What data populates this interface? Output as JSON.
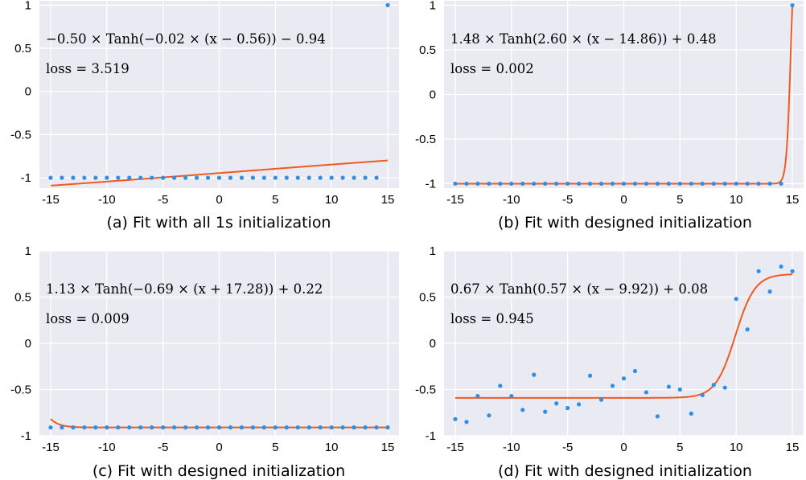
{
  "colors": {
    "background": "#EAEAF2",
    "grid": "#FFFFFF",
    "points": "#2E8FE8",
    "fit": "#F05A1E"
  },
  "chart_data": [
    {
      "type": "scatter",
      "caption": "(a) Fit with all 1s initialization",
      "equation": "−0.50 × Tanh(−0.02 × (x − 0.56)) − 0.94",
      "loss": "loss = 3.519",
      "xlim": [
        -16,
        16
      ],
      "ylim": [
        -1.12,
        1.05
      ],
      "xticks": [
        "-15",
        "-10",
        "-5",
        "0",
        "5",
        "10",
        "15"
      ],
      "yticks": [
        "-1",
        "-0.5",
        "0",
        "0.5",
        "1"
      ],
      "grid": true,
      "x": [
        -15,
        -14,
        -13,
        -12,
        -11,
        -10,
        -9,
        -8,
        -7,
        -6,
        -5,
        -4,
        -3,
        -2,
        -1,
        0,
        1,
        2,
        3,
        4,
        5,
        6,
        7,
        8,
        9,
        10,
        11,
        12,
        13,
        14,
        15
      ],
      "y": [
        -1,
        -1,
        -1,
        -1,
        -1,
        -1,
        -1,
        -1,
        -1,
        -1,
        -1,
        -1,
        -1,
        -1,
        -1,
        -1,
        -1,
        -1,
        -1,
        -1,
        -1,
        -1,
        -1,
        -1,
        -1,
        -1,
        -1,
        -1,
        -1,
        -1,
        1
      ],
      "fit": {
        "A": -0.5,
        "b": -0.02,
        "c": 0.56,
        "d": -0.94
      }
    },
    {
      "type": "scatter",
      "caption": "(b) Fit with designed initialization",
      "equation": "1.48 × Tanh(2.60 × (x − 14.86)) + 0.48",
      "loss": "loss = 0.002",
      "xlim": [
        -16,
        16
      ],
      "ylim": [
        -1.05,
        1.05
      ],
      "xticks": [
        "-15",
        "-10",
        "-5",
        "0",
        "5",
        "10",
        "15"
      ],
      "yticks": [
        "-1",
        "-0.5",
        "0",
        "0.5",
        "1"
      ],
      "grid": true,
      "x": [
        -15,
        -14,
        -13,
        -12,
        -11,
        -10,
        -9,
        -8,
        -7,
        -6,
        -5,
        -4,
        -3,
        -2,
        -1,
        0,
        1,
        2,
        3,
        4,
        5,
        6,
        7,
        8,
        9,
        10,
        11,
        12,
        13,
        14,
        15
      ],
      "y": [
        -1,
        -1,
        -1,
        -1,
        -1,
        -1,
        -1,
        -1,
        -1,
        -1,
        -1,
        -1,
        -1,
        -1,
        -1,
        -1,
        -1,
        -1,
        -1,
        -1,
        -1,
        -1,
        -1,
        -1,
        -1,
        -1,
        -1,
        -1,
        -1,
        -1,
        1
      ],
      "fit": {
        "A": 1.48,
        "b": 2.6,
        "c": 14.86,
        "d": 0.48
      }
    },
    {
      "type": "scatter",
      "caption": "(c) Fit with designed initialization",
      "equation": "1.13 × Tanh(−0.69 × (x + 17.28)) + 0.22",
      "loss": "loss = 0.009",
      "xlim": [
        -16,
        16
      ],
      "ylim": [
        -1.0,
        1.0
      ],
      "xticks": [
        "-15",
        "-10",
        "-5",
        "0",
        "5",
        "10",
        "15"
      ],
      "yticks": [
        "-1",
        "-0.5",
        "0",
        "0.5",
        "1"
      ],
      "grid": true,
      "x": [
        -15,
        -14,
        -13,
        -12,
        -11,
        -10,
        -9,
        -8,
        -7,
        -6,
        -5,
        -4,
        -3,
        -2,
        -1,
        0,
        1,
        2,
        3,
        4,
        5,
        6,
        7,
        8,
        9,
        10,
        11,
        12,
        13,
        14,
        15
      ],
      "y": [
        -0.91,
        -0.91,
        -0.91,
        -0.91,
        -0.91,
        -0.91,
        -0.91,
        -0.91,
        -0.91,
        -0.91,
        -0.91,
        -0.91,
        -0.91,
        -0.91,
        -0.91,
        -0.91,
        -0.91,
        -0.91,
        -0.91,
        -0.91,
        -0.91,
        -0.91,
        -0.91,
        -0.91,
        -0.91,
        -0.91,
        -0.91,
        -0.91,
        -0.91,
        -0.91,
        -0.91
      ],
      "fit": {
        "A": 1.13,
        "b": -0.69,
        "c": -17.28,
        "d": 0.22
      }
    },
    {
      "type": "scatter",
      "caption": "(d) Fit with designed initialization",
      "equation": "0.67 × Tanh(0.57 × (x − 9.92)) + 0.08",
      "loss": "loss = 0.945",
      "xlim": [
        -16,
        16
      ],
      "ylim": [
        -1.0,
        1.0
      ],
      "xticks": [
        "-15",
        "-10",
        "-5",
        "0",
        "5",
        "10",
        "15"
      ],
      "yticks": [
        "-1",
        "-0.5",
        "0",
        "0.5",
        "1"
      ],
      "grid": true,
      "x": [
        -15,
        -14,
        -13,
        -12,
        -11,
        -10,
        -9,
        -8,
        -7,
        -6,
        -5,
        -4,
        -3,
        -2,
        -1,
        0,
        1,
        2,
        3,
        4,
        5,
        6,
        7,
        8,
        9,
        10,
        11,
        12,
        13,
        14,
        15
      ],
      "y": [
        -0.82,
        -0.85,
        -0.57,
        -0.78,
        -0.46,
        -0.57,
        -0.72,
        -0.34,
        -0.74,
        -0.65,
        -0.7,
        -0.66,
        -0.35,
        -0.61,
        -0.46,
        -0.38,
        -0.3,
        -0.53,
        -0.79,
        -0.47,
        -0.5,
        -0.76,
        -0.56,
        -0.45,
        -0.48,
        0.48,
        0.15,
        0.78,
        0.56,
        0.83,
        0.78
      ],
      "fit": {
        "A": 0.67,
        "b": 0.57,
        "c": 9.92,
        "d": 0.08
      }
    }
  ]
}
